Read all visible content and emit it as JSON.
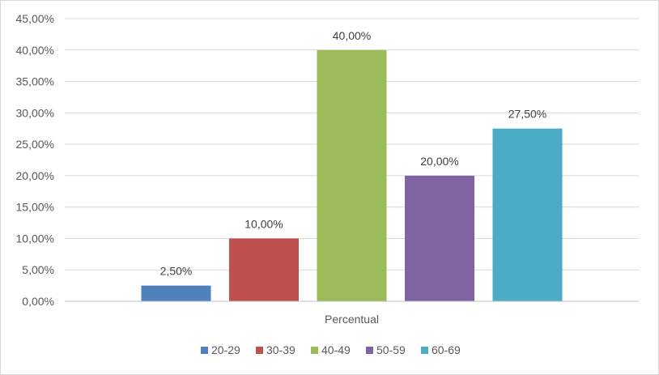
{
  "chart_data": {
    "type": "bar",
    "categories": [
      "Percentual"
    ],
    "series": [
      {
        "name": "20-29",
        "values": [
          2.5
        ],
        "color": "#4f81bd",
        "label": "2,50%"
      },
      {
        "name": "30-39",
        "values": [
          10.0
        ],
        "color": "#c0504d",
        "label": "10,00%"
      },
      {
        "name": "40-49",
        "values": [
          40.0
        ],
        "color": "#9bbb59",
        "label": "40,00%"
      },
      {
        "name": "50-59",
        "values": [
          20.0
        ],
        "color": "#8064a2",
        "label": "20,00%"
      },
      {
        "name": "60-69",
        "values": [
          27.5
        ],
        "color": "#4bacc6",
        "label": "27,50%"
      }
    ],
    "y_ticks": [
      0,
      5,
      10,
      15,
      20,
      25,
      30,
      35,
      40,
      45
    ],
    "y_tick_labels": [
      "0,00%",
      "5,00%",
      "10,00%",
      "15,00%",
      "20,00%",
      "25,00%",
      "30,00%",
      "35,00%",
      "40,00%",
      "45,00%"
    ],
    "ylim": [
      0,
      45
    ],
    "grid": true,
    "legend_position": "bottom",
    "title": "",
    "xlabel": "",
    "ylabel": ""
  }
}
